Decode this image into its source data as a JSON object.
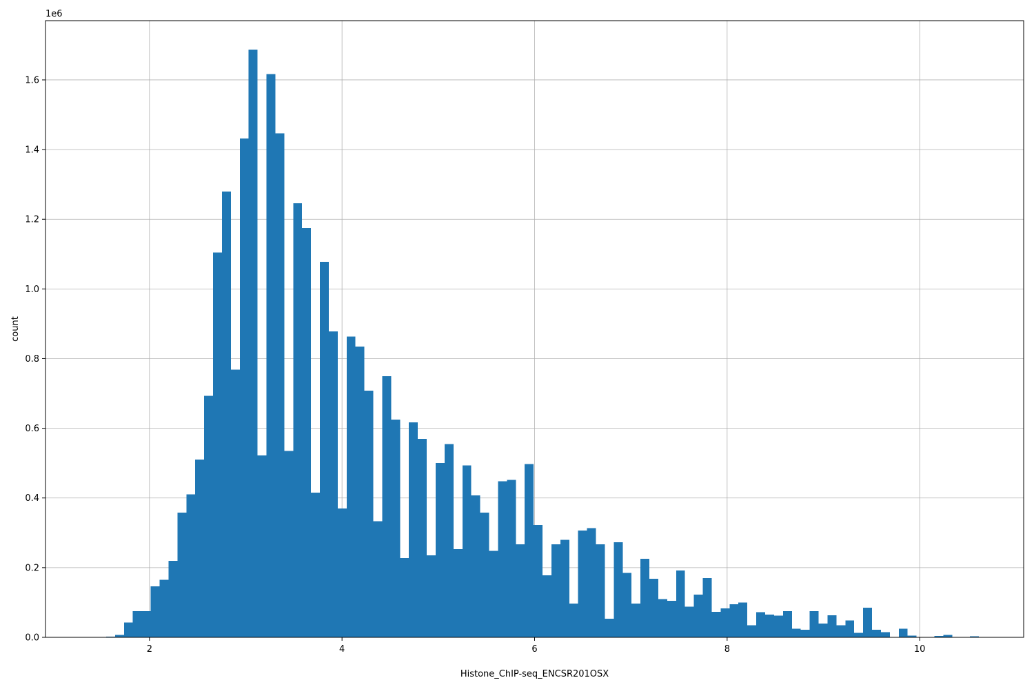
{
  "chart_data": {
    "type": "bar",
    "xlabel": "Histone_ChIP-seq_ENCSR201OSX",
    "ylabel": "count",
    "y_multiplier": "1e6",
    "xlim": [
      0.92,
      11.08
    ],
    "ylim": [
      0,
      1.77
    ],
    "grid": true,
    "bar_color": "#1f77b4",
    "x_ticks": [
      2,
      4,
      6,
      8,
      10
    ],
    "x_tick_labels": [
      "2",
      "4",
      "6",
      "8",
      "10"
    ],
    "y_ticks": [
      0.0,
      0.2,
      0.4,
      0.6,
      0.8,
      1.0,
      1.2,
      1.4,
      1.6
    ],
    "y_tick_labels": [
      "0.0",
      "0.2",
      "0.4",
      "0.6",
      "0.8",
      "1.0",
      "1.2",
      "1.4",
      "1.6"
    ],
    "bin_start": 1.55,
    "bin_width": 0.0925,
    "values": [
      0.002,
      0.007,
      0.043,
      0.075,
      0.075,
      0.146,
      0.165,
      0.22,
      0.358,
      0.41,
      0.51,
      0.693,
      1.105,
      1.28,
      0.768,
      1.432,
      1.687,
      0.522,
      1.617,
      1.447,
      0.535,
      1.246,
      1.175,
      0.415,
      1.078,
      0.878,
      0.37,
      0.863,
      0.835,
      0.708,
      0.333,
      0.75,
      0.625,
      0.227,
      0.617,
      0.57,
      0.235,
      0.5,
      0.555,
      0.253,
      0.493,
      0.407,
      0.358,
      0.248,
      0.448,
      0.452,
      0.267,
      0.497,
      0.322,
      0.178,
      0.267,
      0.28,
      0.097,
      0.307,
      0.313,
      0.267,
      0.053,
      0.273,
      0.185,
      0.097,
      0.225,
      0.168,
      0.11,
      0.105,
      0.192,
      0.088,
      0.123,
      0.17,
      0.073,
      0.083,
      0.095,
      0.1,
      0.035,
      0.072,
      0.065,
      0.062,
      0.075,
      0.025,
      0.022,
      0.075,
      0.04,
      0.063,
      0.035,
      0.048,
      0.013,
      0.085,
      0.022,
      0.015,
      0.0,
      0.025,
      0.005,
      0.0,
      0.0,
      0.004,
      0.007,
      0.0,
      0.0,
      0.003
    ]
  }
}
